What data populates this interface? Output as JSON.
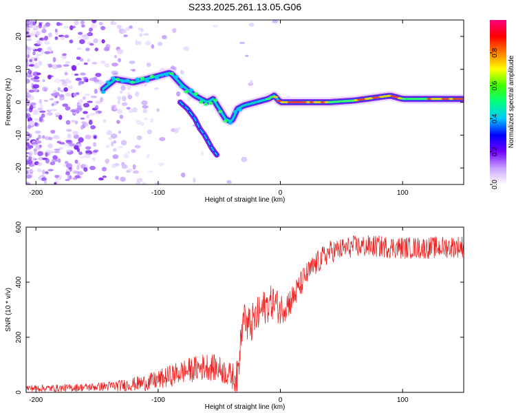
{
  "title": "S233.2025.261.13.05.G06",
  "chart_data": [
    {
      "type": "heatmap",
      "name": "spectrogram",
      "xlabel": "Height of straight line (km)",
      "ylabel": "Frequency (Hz)",
      "xlim": [
        -208,
        150
      ],
      "ylim": [
        -25,
        25
      ],
      "xticks": [
        -200,
        -100,
        0,
        100
      ],
      "yticks": [
        -20,
        -10,
        0,
        10,
        20
      ],
      "colorbar": {
        "label": "Normalized spectral amplitude",
        "range": [
          0.0,
          1.0
        ],
        "ticks": [
          0.0,
          0.2,
          0.4,
          0.6,
          0.8
        ],
        "tick_labels": [
          "0.0",
          "0.2",
          "0.4",
          "0.6",
          "0.8"
        ],
        "colors": [
          "#ffffff",
          "#9000ff",
          "#0000ff",
          "#00ffff",
          "#00ff00",
          "#ffff00",
          "#ff8000",
          "#ff0000",
          "#ff0080"
        ]
      },
      "ridge": {
        "x": [
          -145,
          -135,
          -120,
          -110,
          -100,
          -90,
          -80,
          -70,
          -60,
          -55,
          -50,
          -45,
          -40,
          -35,
          -30,
          -20,
          -10,
          -5,
          0,
          20,
          40,
          60,
          70,
          80,
          90,
          100,
          120,
          150
        ],
        "y": [
          4,
          7,
          6,
          7,
          8,
          9,
          5,
          2,
          0,
          1,
          -2,
          -5,
          -6,
          -2,
          -1,
          0,
          1,
          2,
          0,
          0,
          0,
          0.5,
          1,
          1.5,
          2,
          1,
          1,
          1
        ]
      },
      "branch": {
        "x": [
          -82,
          -76,
          -70,
          -66,
          -62,
          -56,
          -52
        ],
        "y": [
          0,
          -2,
          -5,
          -8,
          -10,
          -14,
          -16
        ]
      }
    },
    {
      "type": "line",
      "name": "snr",
      "xlabel": "Height of straight line (km)",
      "ylabel": "SNR (10 * v/v)",
      "xlim": [
        -208,
        150
      ],
      "ylim": [
        0,
        600
      ],
      "xticks": [
        -200,
        -100,
        0,
        100
      ],
      "yticks": [
        0,
        200,
        400,
        600
      ],
      "color": "#ee2222",
      "trend": {
        "x": [
          -208,
          -180,
          -150,
          -130,
          -110,
          -100,
          -90,
          -80,
          -70,
          -60,
          -50,
          -40,
          -35,
          -32,
          -30,
          -25,
          -20,
          -15,
          -10,
          -5,
          0,
          10,
          20,
          30,
          40,
          60,
          80,
          100,
          120,
          150
        ],
        "y": [
          15,
          15,
          20,
          25,
          35,
          45,
          60,
          75,
          85,
          95,
          85,
          60,
          50,
          220,
          250,
          240,
          270,
          300,
          320,
          330,
          300,
          340,
          420,
          470,
          510,
          530,
          530,
          525,
          525,
          530
        ]
      },
      "noise": {
        "x": [
          -208,
          -150,
          -120,
          -90,
          -60,
          -40,
          -32,
          -20,
          0,
          20,
          50,
          150
        ],
        "y": [
          12,
          15,
          25,
          40,
          50,
          45,
          80,
          70,
          60,
          45,
          40,
          40
        ]
      }
    }
  ]
}
